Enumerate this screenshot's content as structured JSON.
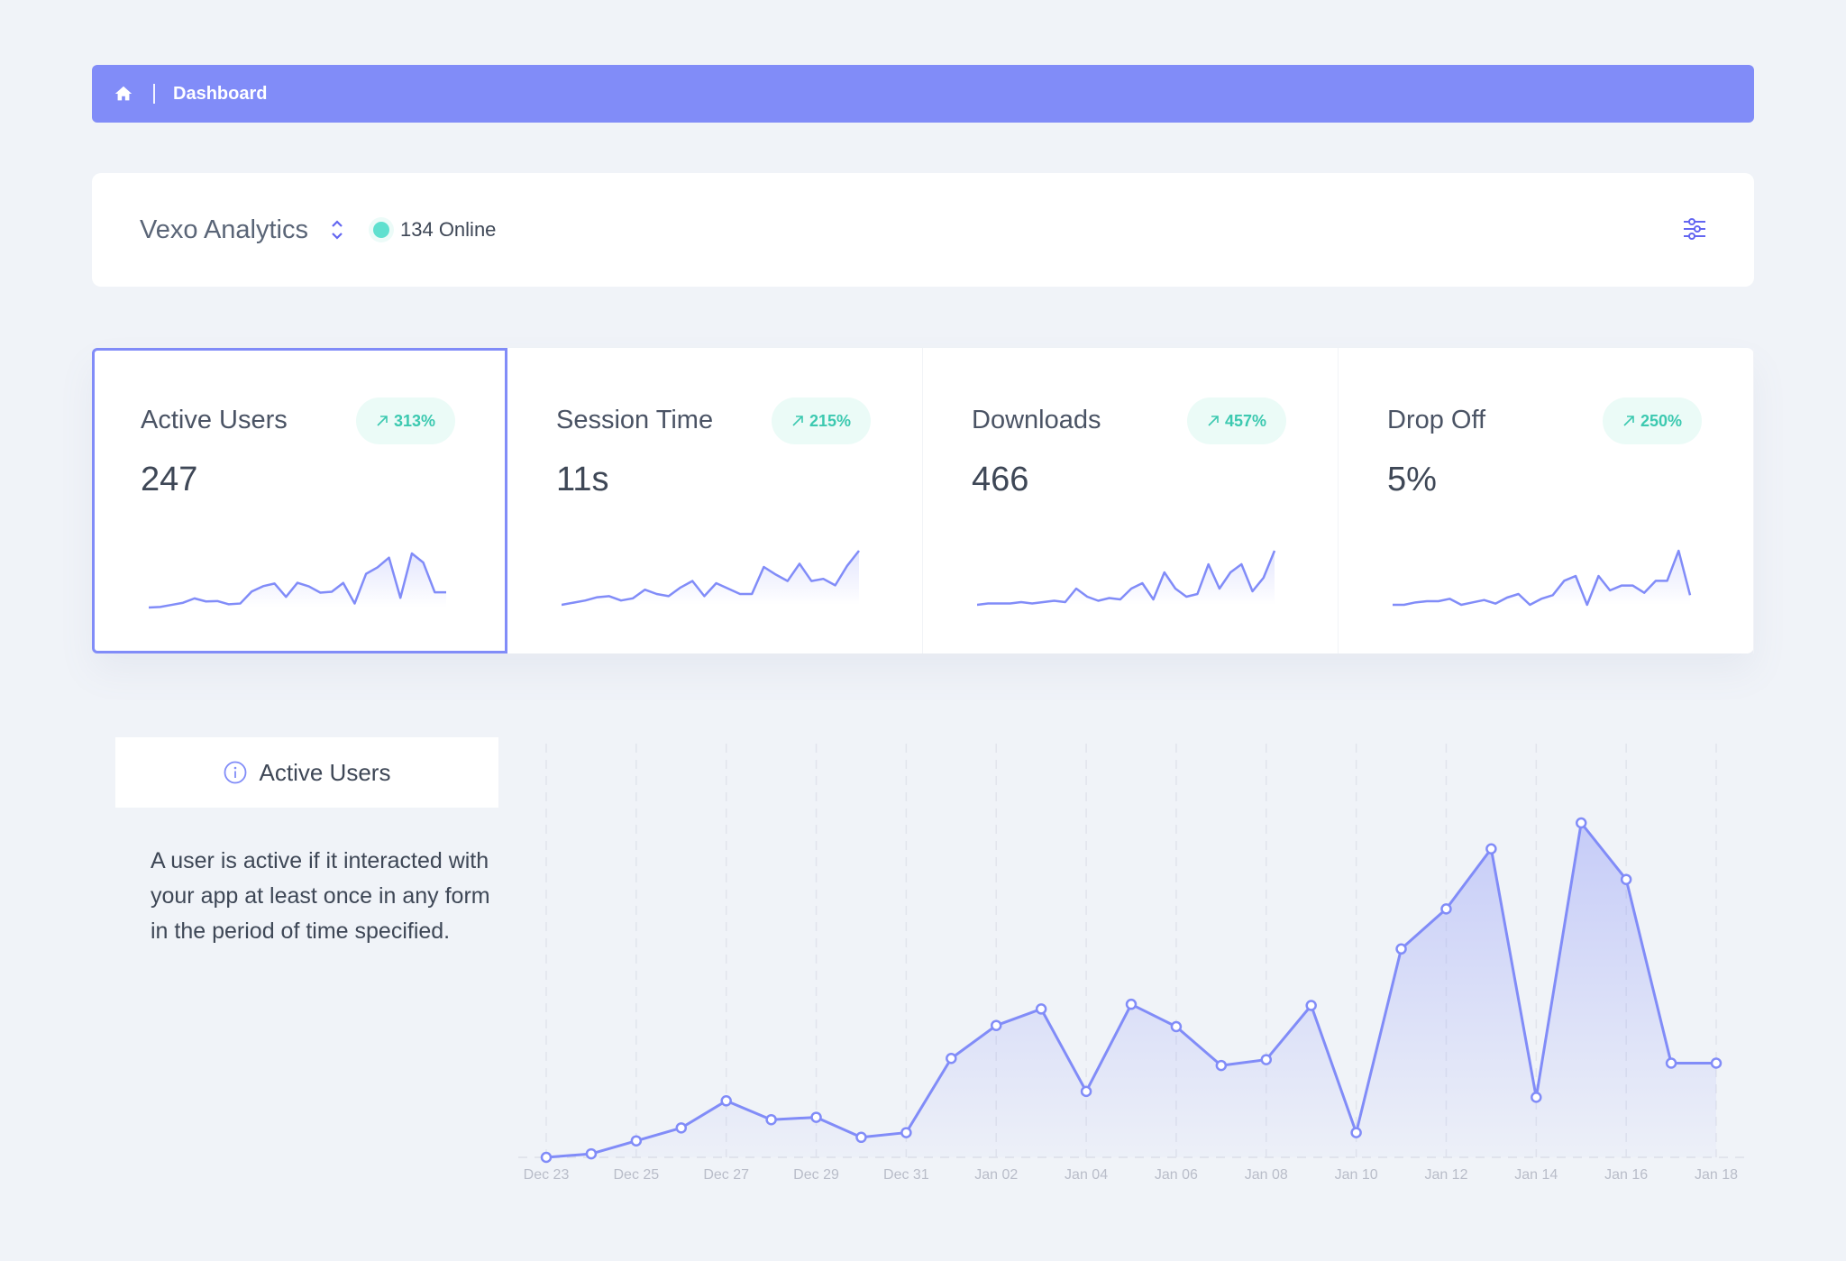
{
  "breadcrumb": {
    "home_icon": "home-icon",
    "label": "Dashboard",
    "color": "#818cf8"
  },
  "header": {
    "app_name": "Vexo Analytics",
    "online_text": "134 Online",
    "online_color": "#5fe0cf",
    "settings_icon": "sliders-icon"
  },
  "stats": [
    {
      "title": "Active Users",
      "value": "247",
      "change": "313%",
      "selected": true,
      "spark": [
        0,
        3,
        14,
        25,
        48,
        32,
        34,
        17,
        21,
        84,
        112,
        126,
        56,
        130,
        111,
        78,
        83,
        129,
        21,
        177,
        211,
        262,
        51,
        284,
        236,
        80,
        80
      ]
    },
    {
      "title": "Session Time",
      "value": "11s",
      "change": "215%",
      "selected": false,
      "spark": [
        0,
        2,
        4,
        7,
        8,
        4,
        6,
        14,
        10,
        8,
        16,
        22,
        8,
        20,
        15,
        10,
        10,
        35,
        28,
        22,
        38,
        22,
        24,
        18,
        36,
        50
      ]
    },
    {
      "title": "Downloads",
      "value": "466",
      "change": "457%",
      "selected": false,
      "spark": [
        0,
        1,
        1,
        1,
        2,
        1,
        2,
        3,
        2,
        12,
        6,
        3,
        5,
        4,
        12,
        16,
        4,
        24,
        12,
        6,
        8,
        30,
        12,
        24,
        30,
        10,
        20,
        40
      ]
    },
    {
      "title": "Drop Off",
      "value": "5%",
      "change": "250%",
      "selected": false,
      "spark": [
        0,
        0,
        2,
        3,
        3,
        5,
        0,
        2,
        4,
        1,
        6,
        9,
        0,
        5,
        8,
        20,
        24,
        0,
        24,
        12,
        16,
        16,
        10,
        20,
        20,
        45,
        8
      ]
    }
  ],
  "info": {
    "icon": "info-icon",
    "title": "Active Users",
    "description": "A user is active if it interacted with your app at least once in any form in the period of time specified."
  },
  "chart_data": {
    "type": "area",
    "title": "",
    "xlabel": "",
    "ylabel": "",
    "grid": "vertical dashed",
    "color": "#818cf8",
    "x": [
      "Dec 23",
      "Dec 24",
      "Dec 25",
      "Dec 26",
      "Dec 27",
      "Dec 28",
      "Dec 29",
      "Dec 30",
      "Dec 31",
      "Jan 01",
      "Jan 02",
      "Jan 03",
      "Jan 04",
      "Jan 05",
      "Jan 06",
      "Jan 07",
      "Jan 08",
      "Jan 09",
      "Jan 10",
      "Jan 11",
      "Jan 12",
      "Jan 13",
      "Jan 14",
      "Jan 15",
      "Jan 16",
      "Jan 17",
      "Jan 18"
    ],
    "tick_labels": [
      "Dec 23",
      "Dec 25",
      "Dec 27",
      "Dec 29",
      "Dec 31",
      "Jan 02",
      "Jan 04",
      "Jan 06",
      "Jan 08",
      "Jan 10",
      "Jan 12",
      "Jan 14",
      "Jan 16",
      "Jan 18"
    ],
    "values": [
      0,
      3,
      14,
      25,
      48,
      32,
      34,
      17,
      21,
      84,
      112,
      126,
      56,
      130,
      111,
      78,
      83,
      129,
      21,
      177,
      211,
      262,
      51,
      284,
      236,
      80,
      80
    ]
  }
}
